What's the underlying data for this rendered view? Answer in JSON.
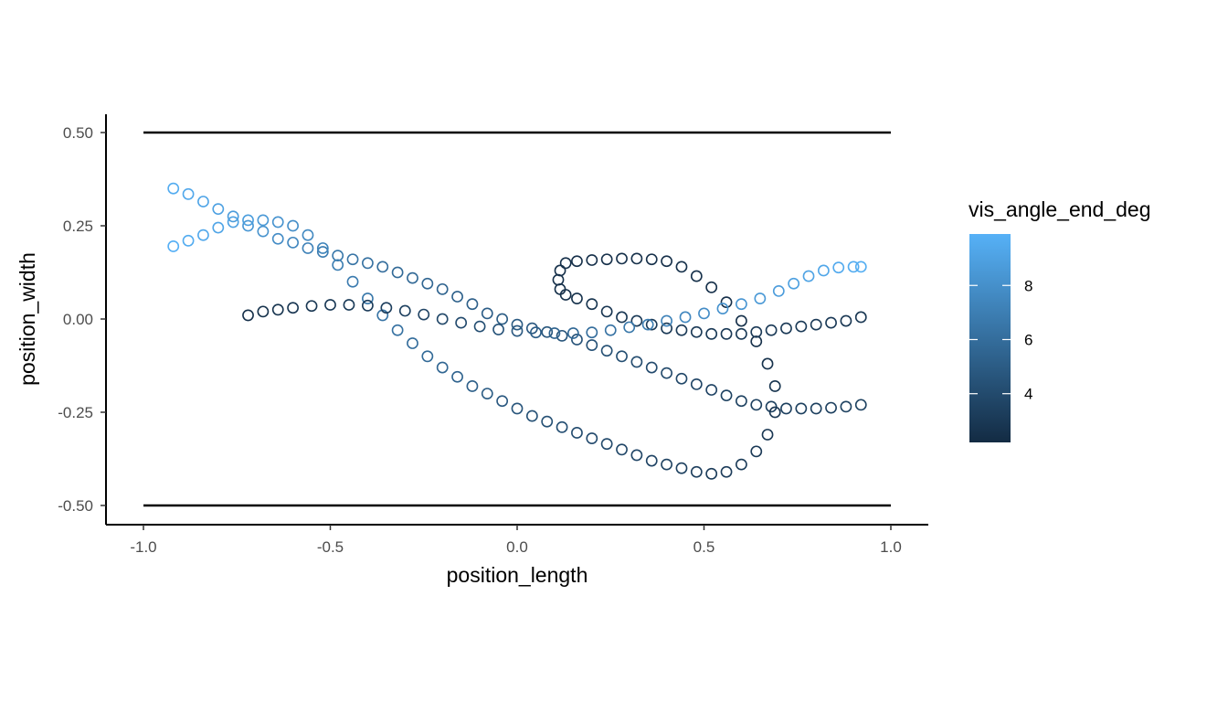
{
  "chart_data": {
    "type": "scatter",
    "title": "",
    "xlabel": "position_length",
    "ylabel": "position_width",
    "xlim": [
      -1.1,
      1.1
    ],
    "ylim": [
      -0.55,
      0.55
    ],
    "x_ticks": [
      -1.0,
      -0.5,
      0.0,
      0.5,
      1.0
    ],
    "x_tick_labels": [
      "-1.0",
      "-0.5",
      "0.0",
      "0.5",
      "1.0"
    ],
    "y_ticks": [
      0.5,
      0.25,
      0.0,
      -0.25,
      -0.5
    ],
    "y_tick_labels": [
      "0.50",
      "0.25",
      "0.00",
      "-0.25",
      "-0.50"
    ],
    "grid": false,
    "reference_lines": [
      {
        "x": [
          -1.0,
          1.0
        ],
        "y": [
          0.5,
          0.5
        ],
        "color": "#000000"
      },
      {
        "x": [
          -1.0,
          1.0
        ],
        "y": [
          -0.5,
          -0.5
        ],
        "color": "#000000"
      }
    ],
    "color_scale": {
      "title": "vis_angle_end_deg",
      "variable": "vis_angle_end_deg",
      "low_color": "#132B43",
      "high_color": "#56B1F7",
      "range": [
        2.2,
        9.9
      ],
      "breaks": [
        4,
        6,
        8
      ],
      "break_labels": [
        "4",
        "6",
        "8"
      ],
      "position": "right"
    },
    "series": [
      {
        "points": [
          {
            "x": -0.92,
            "y": 0.35,
            "v": 9.6
          },
          {
            "x": -0.88,
            "y": 0.335,
            "v": 9.4
          },
          {
            "x": -0.84,
            "y": 0.315,
            "v": 9.2
          },
          {
            "x": -0.8,
            "y": 0.295,
            "v": 9.0
          },
          {
            "x": -0.76,
            "y": 0.275,
            "v": 8.7
          },
          {
            "x": -0.72,
            "y": 0.25,
            "v": 8.4
          },
          {
            "x": -0.68,
            "y": 0.235,
            "v": 8.1
          },
          {
            "x": -0.64,
            "y": 0.215,
            "v": 7.8
          },
          {
            "x": -0.6,
            "y": 0.205,
            "v": 7.5
          },
          {
            "x": -0.56,
            "y": 0.19,
            "v": 7.2
          },
          {
            "x": -0.52,
            "y": 0.18,
            "v": 6.9
          },
          {
            "x": -0.48,
            "y": 0.17,
            "v": 6.6
          },
          {
            "x": -0.44,
            "y": 0.16,
            "v": 6.4
          },
          {
            "x": -0.4,
            "y": 0.15,
            "v": 6.2
          },
          {
            "x": -0.36,
            "y": 0.14,
            "v": 6.0
          },
          {
            "x": -0.32,
            "y": 0.125,
            "v": 5.8
          },
          {
            "x": -0.28,
            "y": 0.11,
            "v": 5.7
          },
          {
            "x": -0.24,
            "y": 0.095,
            "v": 5.6
          },
          {
            "x": -0.2,
            "y": 0.08,
            "v": 5.4
          },
          {
            "x": -0.16,
            "y": 0.06,
            "v": 5.3
          },
          {
            "x": -0.12,
            "y": 0.04,
            "v": 5.2
          },
          {
            "x": -0.08,
            "y": 0.015,
            "v": 5.1
          },
          {
            "x": -0.04,
            "y": 0.0,
            "v": 5.0
          },
          {
            "x": 0.0,
            "y": -0.015,
            "v": 4.9
          },
          {
            "x": 0.04,
            "y": -0.025,
            "v": 4.8
          },
          {
            "x": 0.08,
            "y": -0.035,
            "v": 4.7
          },
          {
            "x": 0.12,
            "y": -0.045,
            "v": 4.6
          },
          {
            "x": 0.16,
            "y": -0.055,
            "v": 4.5
          },
          {
            "x": 0.2,
            "y": -0.07,
            "v": 4.4
          },
          {
            "x": 0.24,
            "y": -0.085,
            "v": 4.3
          },
          {
            "x": 0.28,
            "y": -0.1,
            "v": 4.2
          },
          {
            "x": 0.32,
            "y": -0.115,
            "v": 4.1
          },
          {
            "x": 0.36,
            "y": -0.13,
            "v": 4.0
          },
          {
            "x": 0.4,
            "y": -0.145,
            "v": 3.9
          },
          {
            "x": 0.44,
            "y": -0.16,
            "v": 3.8
          },
          {
            "x": 0.48,
            "y": -0.175,
            "v": 3.7
          },
          {
            "x": 0.52,
            "y": -0.19,
            "v": 3.6
          },
          {
            "x": 0.56,
            "y": -0.205,
            "v": 3.5
          },
          {
            "x": 0.6,
            "y": -0.22,
            "v": 3.5
          },
          {
            "x": 0.64,
            "y": -0.23,
            "v": 3.4
          },
          {
            "x": 0.68,
            "y": -0.235,
            "v": 3.4
          },
          {
            "x": 0.72,
            "y": -0.24,
            "v": 3.4
          },
          {
            "x": 0.76,
            "y": -0.24,
            "v": 3.4
          },
          {
            "x": 0.8,
            "y": -0.24,
            "v": 3.4
          },
          {
            "x": 0.84,
            "y": -0.238,
            "v": 3.4
          },
          {
            "x": 0.88,
            "y": -0.235,
            "v": 3.5
          },
          {
            "x": 0.92,
            "y": -0.23,
            "v": 3.5
          }
        ]
      },
      {
        "points": [
          {
            "x": -0.92,
            "y": 0.195,
            "v": 9.8
          },
          {
            "x": -0.88,
            "y": 0.21,
            "v": 9.6
          },
          {
            "x": -0.84,
            "y": 0.225,
            "v": 9.4
          },
          {
            "x": -0.8,
            "y": 0.245,
            "v": 9.2
          },
          {
            "x": -0.76,
            "y": 0.26,
            "v": 9.0
          },
          {
            "x": -0.72,
            "y": 0.265,
            "v": 8.8
          },
          {
            "x": -0.68,
            "y": 0.265,
            "v": 8.5
          },
          {
            "x": -0.64,
            "y": 0.26,
            "v": 8.2
          },
          {
            "x": -0.6,
            "y": 0.25,
            "v": 7.9
          },
          {
            "x": -0.56,
            "y": 0.225,
            "v": 7.6
          },
          {
            "x": -0.52,
            "y": 0.19,
            "v": 7.3
          },
          {
            "x": -0.48,
            "y": 0.145,
            "v": 7.0
          },
          {
            "x": -0.44,
            "y": 0.1,
            "v": 6.8
          },
          {
            "x": -0.4,
            "y": 0.055,
            "v": 6.6
          },
          {
            "x": -0.36,
            "y": 0.01,
            "v": 6.4
          },
          {
            "x": -0.32,
            "y": -0.03,
            "v": 6.2
          },
          {
            "x": -0.28,
            "y": -0.065,
            "v": 6.0
          },
          {
            "x": -0.24,
            "y": -0.1,
            "v": 5.8
          },
          {
            "x": -0.2,
            "y": -0.13,
            "v": 5.6
          },
          {
            "x": -0.16,
            "y": -0.155,
            "v": 5.4
          },
          {
            "x": -0.12,
            "y": -0.18,
            "v": 5.2
          },
          {
            "x": -0.08,
            "y": -0.2,
            "v": 5.0
          },
          {
            "x": -0.04,
            "y": -0.22,
            "v": 4.8
          },
          {
            "x": 0.0,
            "y": -0.24,
            "v": 4.6
          },
          {
            "x": 0.04,
            "y": -0.26,
            "v": 4.4
          },
          {
            "x": 0.08,
            "y": -0.275,
            "v": 4.3
          },
          {
            "x": 0.12,
            "y": -0.29,
            "v": 4.2
          },
          {
            "x": 0.16,
            "y": -0.305,
            "v": 4.1
          },
          {
            "x": 0.2,
            "y": -0.32,
            "v": 4.0
          },
          {
            "x": 0.24,
            "y": -0.335,
            "v": 3.9
          },
          {
            "x": 0.28,
            "y": -0.35,
            "v": 3.8
          },
          {
            "x": 0.32,
            "y": -0.365,
            "v": 3.7
          },
          {
            "x": 0.36,
            "y": -0.38,
            "v": 3.6
          },
          {
            "x": 0.4,
            "y": -0.39,
            "v": 3.5
          },
          {
            "x": 0.44,
            "y": -0.4,
            "v": 3.4
          },
          {
            "x": 0.48,
            "y": -0.41,
            "v": 3.3
          },
          {
            "x": 0.52,
            "y": -0.415,
            "v": 3.2
          },
          {
            "x": 0.56,
            "y": -0.41,
            "v": 3.2
          },
          {
            "x": 0.6,
            "y": -0.39,
            "v": 3.1
          },
          {
            "x": 0.64,
            "y": -0.355,
            "v": 3.0
          },
          {
            "x": 0.67,
            "y": -0.31,
            "v": 2.9
          },
          {
            "x": 0.69,
            "y": -0.25,
            "v": 2.8
          },
          {
            "x": 0.69,
            "y": -0.18,
            "v": 2.7
          },
          {
            "x": 0.67,
            "y": -0.12,
            "v": 2.6
          },
          {
            "x": 0.64,
            "y": -0.06,
            "v": 2.5
          },
          {
            "x": 0.6,
            "y": -0.005,
            "v": 2.5
          },
          {
            "x": 0.56,
            "y": 0.045,
            "v": 2.5
          },
          {
            "x": 0.52,
            "y": 0.085,
            "v": 2.5
          },
          {
            "x": 0.48,
            "y": 0.115,
            "v": 2.5
          },
          {
            "x": 0.44,
            "y": 0.14,
            "v": 2.5
          },
          {
            "x": 0.4,
            "y": 0.155,
            "v": 2.5
          },
          {
            "x": 0.36,
            "y": 0.16,
            "v": 2.5
          },
          {
            "x": 0.32,
            "y": 0.162,
            "v": 2.5
          },
          {
            "x": 0.28,
            "y": 0.162,
            "v": 2.5
          },
          {
            "x": 0.24,
            "y": 0.16,
            "v": 2.5
          },
          {
            "x": 0.2,
            "y": 0.158,
            "v": 2.5
          },
          {
            "x": 0.16,
            "y": 0.155,
            "v": 2.5
          },
          {
            "x": 0.13,
            "y": 0.15,
            "v": 2.5
          },
          {
            "x": 0.115,
            "y": 0.13,
            "v": 2.5
          },
          {
            "x": 0.11,
            "y": 0.105,
            "v": 2.5
          },
          {
            "x": 0.115,
            "y": 0.08,
            "v": 2.5
          },
          {
            "x": 0.13,
            "y": 0.065,
            "v": 2.5
          },
          {
            "x": 0.16,
            "y": 0.055,
            "v": 2.6
          },
          {
            "x": 0.2,
            "y": 0.04,
            "v": 2.7
          },
          {
            "x": 0.24,
            "y": 0.02,
            "v": 2.8
          },
          {
            "x": 0.28,
            "y": 0.005,
            "v": 2.9
          },
          {
            "x": 0.32,
            "y": -0.005,
            "v": 3.0
          },
          {
            "x": 0.36,
            "y": -0.015,
            "v": 3.0
          },
          {
            "x": 0.4,
            "y": -0.025,
            "v": 3.0
          },
          {
            "x": 0.44,
            "y": -0.03,
            "v": 3.0
          },
          {
            "x": 0.48,
            "y": -0.035,
            "v": 3.0
          },
          {
            "x": 0.52,
            "y": -0.04,
            "v": 3.0
          },
          {
            "x": 0.56,
            "y": -0.04,
            "v": 3.0
          },
          {
            "x": 0.6,
            "y": -0.04,
            "v": 3.0
          },
          {
            "x": 0.64,
            "y": -0.035,
            "v": 3.0
          },
          {
            "x": 0.68,
            "y": -0.03,
            "v": 3.0
          },
          {
            "x": 0.72,
            "y": -0.025,
            "v": 3.0
          },
          {
            "x": 0.76,
            "y": -0.02,
            "v": 3.0
          },
          {
            "x": 0.8,
            "y": -0.015,
            "v": 3.0
          },
          {
            "x": 0.84,
            "y": -0.01,
            "v": 3.0
          },
          {
            "x": 0.88,
            "y": -0.005,
            "v": 2.9
          },
          {
            "x": 0.92,
            "y": 0.005,
            "v": 2.9
          }
        ]
      },
      {
        "points": [
          {
            "x": -0.72,
            "y": 0.01,
            "v": 2.5
          },
          {
            "x": -0.68,
            "y": 0.02,
            "v": 2.6
          },
          {
            "x": -0.64,
            "y": 0.025,
            "v": 2.7
          },
          {
            "x": -0.6,
            "y": 0.03,
            "v": 2.8
          },
          {
            "x": -0.55,
            "y": 0.035,
            "v": 2.9
          },
          {
            "x": -0.5,
            "y": 0.038,
            "v": 3.0
          },
          {
            "x": -0.45,
            "y": 0.038,
            "v": 3.1
          },
          {
            "x": -0.4,
            "y": 0.036,
            "v": 3.2
          },
          {
            "x": -0.35,
            "y": 0.03,
            "v": 3.3
          },
          {
            "x": -0.3,
            "y": 0.022,
            "v": 3.4
          },
          {
            "x": -0.25,
            "y": 0.012,
            "v": 3.6
          },
          {
            "x": -0.2,
            "y": 0.0,
            "v": 3.8
          },
          {
            "x": -0.15,
            "y": -0.01,
            "v": 4.0
          },
          {
            "x": -0.1,
            "y": -0.02,
            "v": 4.2
          },
          {
            "x": -0.05,
            "y": -0.028,
            "v": 4.5
          },
          {
            "x": 0.0,
            "y": -0.032,
            "v": 4.8
          },
          {
            "x": 0.05,
            "y": -0.036,
            "v": 5.1
          },
          {
            "x": 0.1,
            "y": -0.038,
            "v": 5.4
          },
          {
            "x": 0.15,
            "y": -0.038,
            "v": 5.7
          },
          {
            "x": 0.2,
            "y": -0.036,
            "v": 6.0
          },
          {
            "x": 0.25,
            "y": -0.03,
            "v": 6.3
          },
          {
            "x": 0.3,
            "y": -0.022,
            "v": 6.6
          },
          {
            "x": 0.35,
            "y": -0.015,
            "v": 6.9
          },
          {
            "x": 0.4,
            "y": -0.005,
            "v": 7.2
          },
          {
            "x": 0.45,
            "y": 0.005,
            "v": 7.5
          },
          {
            "x": 0.5,
            "y": 0.015,
            "v": 7.8
          },
          {
            "x": 0.55,
            "y": 0.028,
            "v": 8.1
          },
          {
            "x": 0.6,
            "y": 0.04,
            "v": 8.3
          },
          {
            "x": 0.65,
            "y": 0.055,
            "v": 8.5
          },
          {
            "x": 0.7,
            "y": 0.075,
            "v": 8.7
          },
          {
            "x": 0.74,
            "y": 0.095,
            "v": 8.9
          },
          {
            "x": 0.78,
            "y": 0.115,
            "v": 9.1
          },
          {
            "x": 0.82,
            "y": 0.13,
            "v": 9.3
          },
          {
            "x": 0.86,
            "y": 0.138,
            "v": 9.5
          },
          {
            "x": 0.9,
            "y": 0.14,
            "v": 9.6
          },
          {
            "x": 0.92,
            "y": 0.14,
            "v": 9.7
          }
        ]
      }
    ]
  }
}
